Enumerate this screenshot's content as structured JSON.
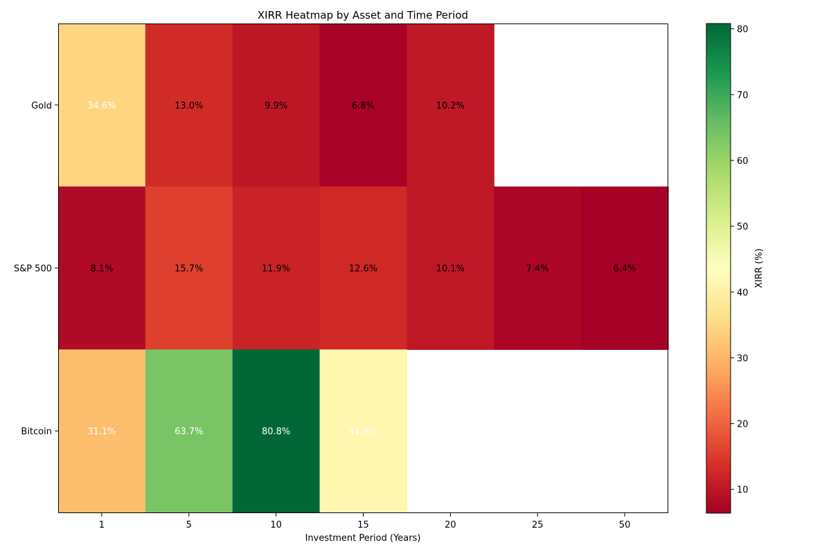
{
  "chart_data": {
    "type": "heatmap",
    "title": "XIRR Heatmap by Asset and Time Period",
    "xlabel": "Investment Period (Years)",
    "ylabel": "",
    "x_categories": [
      "1",
      "5",
      "10",
      "15",
      "20",
      "25",
      "50"
    ],
    "y_categories": [
      "Gold",
      "S&P 500",
      "Bitcoin"
    ],
    "values": [
      [
        34.6,
        13.0,
        9.9,
        6.8,
        10.2,
        null,
        null
      ],
      [
        8.1,
        15.7,
        11.9,
        12.6,
        10.1,
        7.4,
        6.4
      ],
      [
        31.1,
        63.7,
        80.8,
        41.5,
        null,
        null,
        null
      ]
    ],
    "cell_labels": [
      [
        "34.6%",
        "13.0%",
        "9.9%",
        "6.8%",
        "10.2%",
        "",
        ""
      ],
      [
        "8.1%",
        "15.7%",
        "11.9%",
        "12.6%",
        "10.1%",
        "7.4%",
        "6.4%"
      ],
      [
        "31.1%",
        "63.7%",
        "80.8%",
        "41.5%",
        "",
        "",
        ""
      ]
    ],
    "colorbar": {
      "label": "XIRR (%)",
      "colormap": "RdYlGn",
      "range": [
        6.4,
        80.8
      ],
      "ticks": [
        "10",
        "20",
        "30",
        "40",
        "50",
        "60",
        "70",
        "80"
      ]
    }
  }
}
